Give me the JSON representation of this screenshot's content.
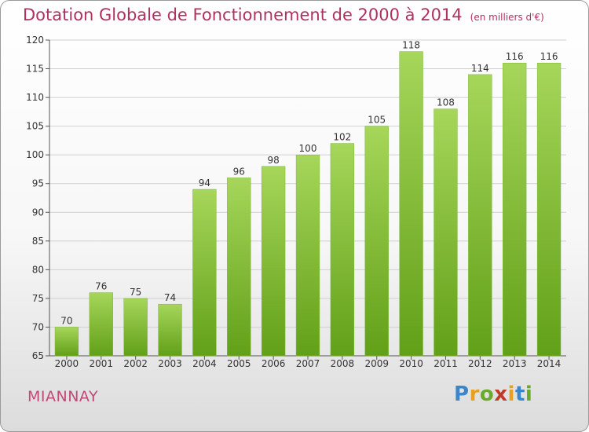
{
  "title": "Dotation Globale de Fonctionnement de 2000 à 2014",
  "subtitle": "(en milliers d'€)",
  "place": "MIANNAY",
  "logo": [
    "P",
    "r",
    "o",
    "x",
    "i",
    "t",
    "i"
  ],
  "colors": {
    "bar_top": "#a6d65a",
    "bar_bottom": "#62a018",
    "title": "#b03060",
    "grid": "#d0d0d0"
  },
  "chart_data": {
    "type": "bar",
    "title": "Dotation Globale de Fonctionnement de 2000 à 2014",
    "xlabel": "",
    "ylabel": "",
    "ylim": [
      65,
      120
    ],
    "yticks": [
      65,
      70,
      75,
      80,
      85,
      90,
      95,
      100,
      105,
      110,
      115,
      120
    ],
    "categories": [
      "2000",
      "2001",
      "2002",
      "2003",
      "2004",
      "2005",
      "2006",
      "2007",
      "2008",
      "2009",
      "2010",
      "2011",
      "2012",
      "2013",
      "2014"
    ],
    "values": [
      70,
      76,
      75,
      74,
      94,
      96,
      98,
      100,
      102,
      105,
      118,
      108,
      114,
      116,
      116
    ],
    "grid": true
  }
}
